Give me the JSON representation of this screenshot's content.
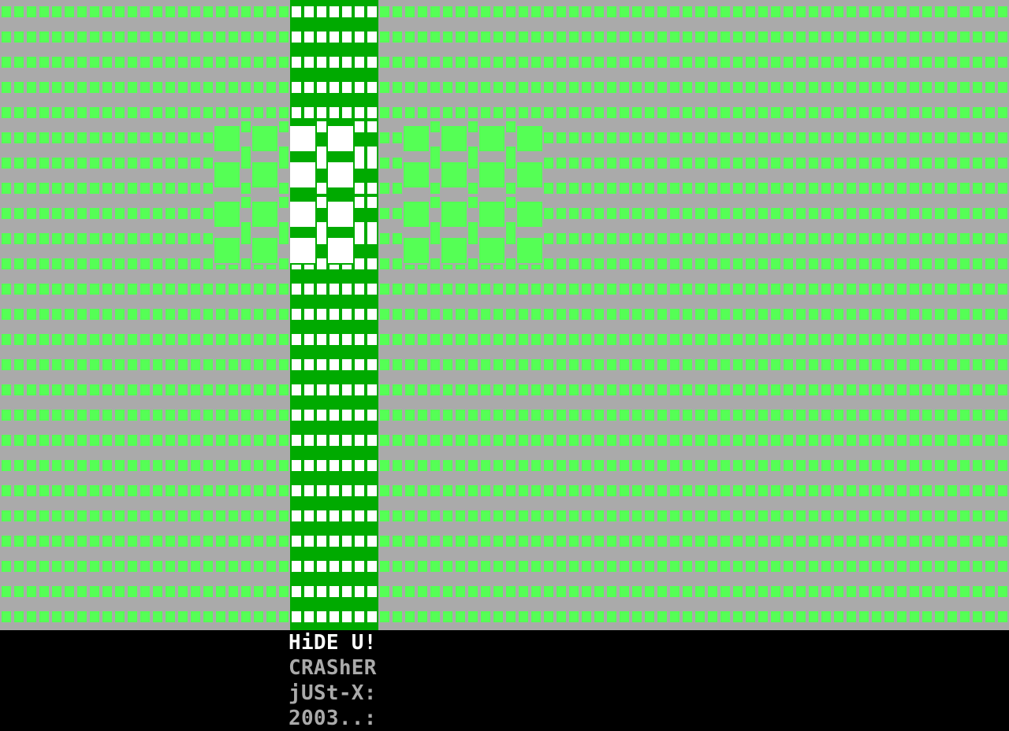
{
  "colors": {
    "background": "#aaaaaa",
    "bright_green": "#55ff55",
    "dark_green": "#00aa00",
    "white": "#ffffff",
    "text_gray": "#aaaaaa",
    "black": "#000000"
  },
  "credits": {
    "title": "HiDE U!",
    "lines": [
      "CRAShER",
      "jUSt-X:",
      "2003..:"
    ]
  }
}
